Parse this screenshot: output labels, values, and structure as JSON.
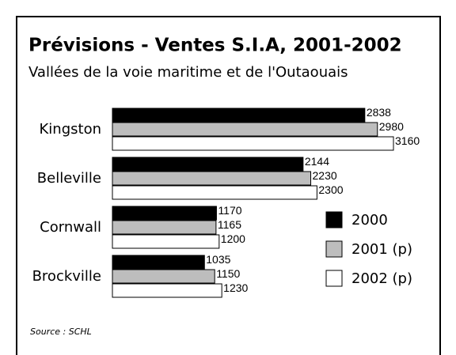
{
  "chart_data": {
    "type": "bar",
    "orientation": "horizontal",
    "title": "Prévisions - Ventes S.I.A, 2001-2002",
    "subtitle": "Vallées de la voie maritime et de l'Outaouais",
    "categories": [
      "Kingston",
      "Belleville",
      "Cornwall",
      "Brockville"
    ],
    "series": [
      {
        "name": "2000",
        "color": "#000000",
        "values": [
          2838,
          2144,
          1170,
          1035
        ]
      },
      {
        "name": "2001 (p)",
        "color": "#bdbdbd",
        "values": [
          2980,
          2230,
          1165,
          1150
        ]
      },
      {
        "name": "2002 (p)",
        "color": "#ffffff",
        "values": [
          3160,
          2300,
          1200,
          1230
        ]
      }
    ],
    "source": "Source : SCHL"
  }
}
